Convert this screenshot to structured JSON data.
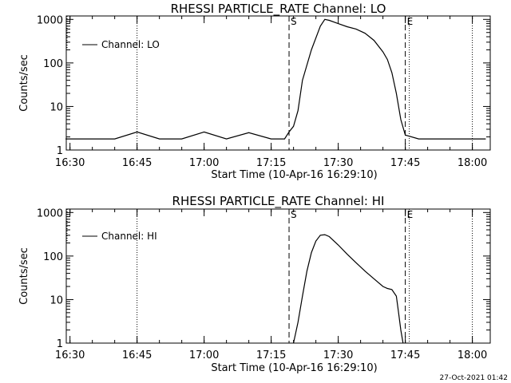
{
  "colors": {
    "background": "#ffffff",
    "ink": "#000000"
  },
  "timestamp": "27-Oct-2021 01:42",
  "chart_data": [
    {
      "type": "line",
      "title": "RHESSI PARTICLE_RATE Channel: LO",
      "xlabel": "Start Time (10-Apr-16 16:29:10)",
      "ylabel": "Counts/sec",
      "x_ticks": [
        "16:30",
        "16:45",
        "17:00",
        "17:15",
        "17:30",
        "17:45",
        "18:00"
      ],
      "y_ticks": [
        "1",
        "10",
        "100",
        "1000"
      ],
      "ylim": [
        1,
        1200
      ],
      "y_scale": "log",
      "legend": {
        "entries": [
          "Channel: LO"
        ],
        "placement": "top-left"
      },
      "markers": [
        {
          "label": "S",
          "time": "17:19",
          "style": "dashed"
        },
        {
          "label": "E",
          "time": "17:45",
          "style": "dashed"
        }
      ],
      "night_lines": [
        "16:45",
        "17:45",
        "18:00"
      ],
      "series": [
        {
          "name": "Channel: LO",
          "x": [
            "16:29",
            "16:31",
            "16:33",
            "16:35",
            "16:38",
            "16:40",
            "16:45",
            "16:50",
            "16:55",
            "17:00",
            "17:05",
            "17:10",
            "17:15",
            "17:18",
            "17:19",
            "17:20",
            "17:21",
            "17:22",
            "17:24",
            "17:26",
            "17:27",
            "17:28",
            "17:30",
            "17:32",
            "17:34",
            "17:36",
            "17:38",
            "17:40",
            "17:41",
            "17:42",
            "17:43",
            "17:44",
            "17:45",
            "17:48",
            "17:50",
            "17:55",
            "18:00",
            "18:03"
          ],
          "values": [
            1.8,
            1.8,
            1.8,
            1.8,
            1.8,
            1.8,
            2.6,
            1.8,
            1.8,
            2.6,
            1.8,
            2.5,
            1.8,
            1.8,
            2.6,
            3.5,
            8,
            40,
            200,
            700,
            1000,
            950,
            800,
            680,
            600,
            480,
            330,
            180,
            120,
            60,
            20,
            5,
            2.2,
            1.8,
            1.8,
            1.8,
            1.8,
            1.8
          ]
        }
      ]
    },
    {
      "type": "line",
      "title": "RHESSI PARTICLE_RATE Channel: HI",
      "xlabel": "Start Time (10-Apr-16 16:29:10)",
      "ylabel": "Counts/sec",
      "x_ticks": [
        "16:30",
        "16:45",
        "17:00",
        "17:15",
        "17:30",
        "17:45",
        "18:00"
      ],
      "y_ticks": [
        "1",
        "10",
        "100",
        "1000"
      ],
      "ylim": [
        1,
        1200
      ],
      "y_scale": "log",
      "legend": {
        "entries": [
          "Channel: HI"
        ],
        "placement": "top-left"
      },
      "markers": [
        {
          "label": "S",
          "time": "17:19",
          "style": "dashed"
        },
        {
          "label": "E",
          "time": "17:45",
          "style": "dashed"
        }
      ],
      "night_lines": [
        "16:45",
        "17:45",
        "18:00"
      ],
      "series": [
        {
          "name": "Channel: HI",
          "x": [
            "17:20",
            "17:21",
            "17:22",
            "17:23",
            "17:24",
            "17:25",
            "17:26",
            "17:27",
            "17:28",
            "17:30",
            "17:32",
            "17:34",
            "17:36",
            "17:38",
            "17:40",
            "17:41",
            "17:42",
            "17:43",
            "17:43.5",
            "17:44",
            "17:44.5"
          ],
          "values": [
            1.0,
            3,
            12,
            45,
            120,
            220,
            300,
            310,
            280,
            180,
            110,
            70,
            45,
            30,
            20,
            18,
            17,
            12,
            5,
            2,
            1.0
          ]
        }
      ]
    }
  ]
}
